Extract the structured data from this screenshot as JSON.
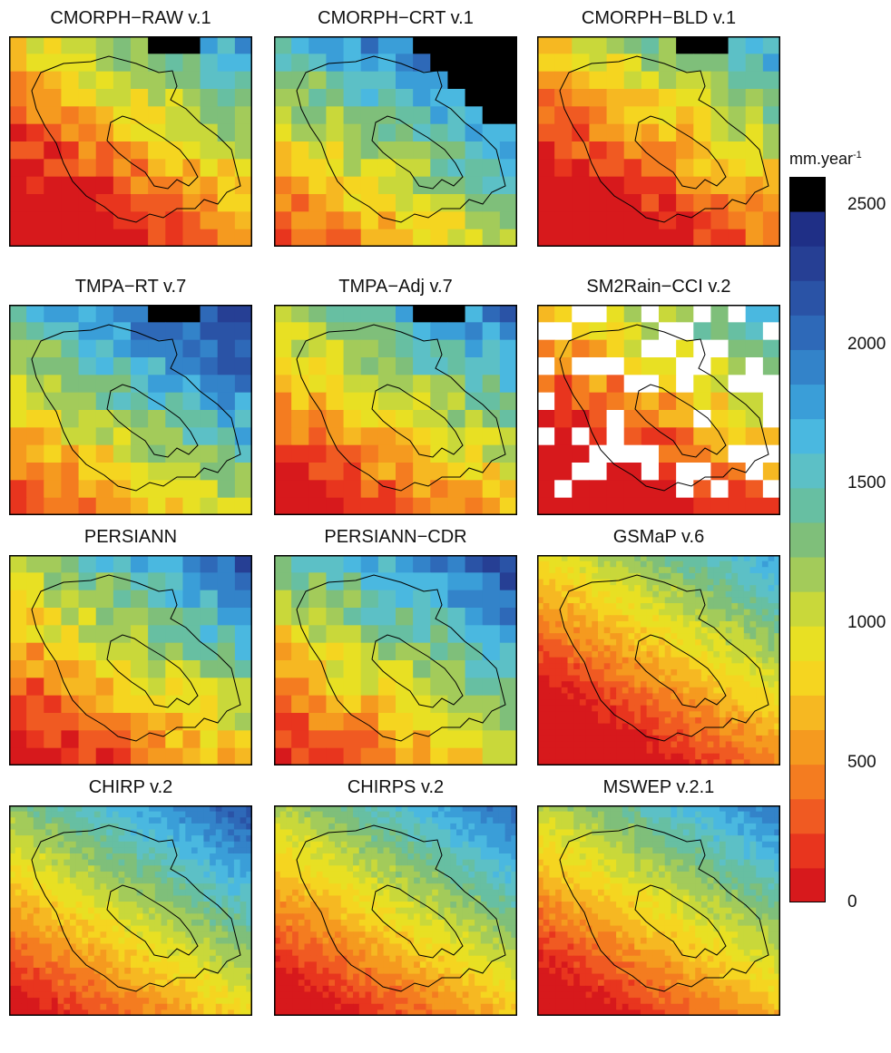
{
  "panels": [
    {
      "title": "CMORPH−RAW v.1",
      "palette_shift": 0.3,
      "variant": "raw"
    },
    {
      "title": "CMORPH−CRT v.1",
      "palette_shift": 0.55,
      "variant": "crt"
    },
    {
      "title": "CMORPH−BLD v.1",
      "palette_shift": 0.28,
      "variant": "bld"
    },
    {
      "title": "TMPA−RT v.7",
      "palette_shift": 0.55,
      "variant": "tmparт"
    },
    {
      "title": "TMPA−Adj v.7",
      "palette_shift": 0.4,
      "variant": "tmpaadj"
    },
    {
      "title": "SM2Rain−CCI v.2",
      "palette_shift": 0.25,
      "variant": "sm2rain"
    },
    {
      "title": "PERSIANN",
      "palette_shift": 0.42,
      "variant": "persiann"
    },
    {
      "title": "PERSIANN−CDR",
      "palette_shift": 0.48,
      "variant": "persianncdr"
    },
    {
      "title": "GSMaP v.6",
      "palette_shift": 0.3,
      "variant": "gsmap"
    },
    {
      "title": "CHIRP v.2",
      "palette_shift": 0.45,
      "variant": "chirp"
    },
    {
      "title": "CHIRPS v.2",
      "palette_shift": 0.4,
      "variant": "chirps"
    },
    {
      "title": "MSWEP v.2.1",
      "palette_shift": 0.38,
      "variant": "mswep"
    }
  ],
  "colorbar": {
    "unit_base": "mm.year",
    "unit_exp": "-1",
    "ticks": [
      "2500",
      "2000",
      "1500",
      "1000",
      "500",
      "0"
    ],
    "tick_values": [
      2500,
      2000,
      1500,
      1000,
      500,
      0
    ],
    "max": 2600,
    "colors": [
      "#d7191c",
      "#e8351e",
      "#f05a22",
      "#f47c20",
      "#f59a1f",
      "#f6b822",
      "#f5d520",
      "#e8e023",
      "#c9d83a",
      "#a3cb5a",
      "#7fbf7a",
      "#67bfa2",
      "#5cc0c6",
      "#4ab8e0",
      "#3a9ed8",
      "#3383c9",
      "#2e69b8",
      "#2a53a6",
      "#263f94",
      "#1f2f86",
      "#000000"
    ]
  }
}
